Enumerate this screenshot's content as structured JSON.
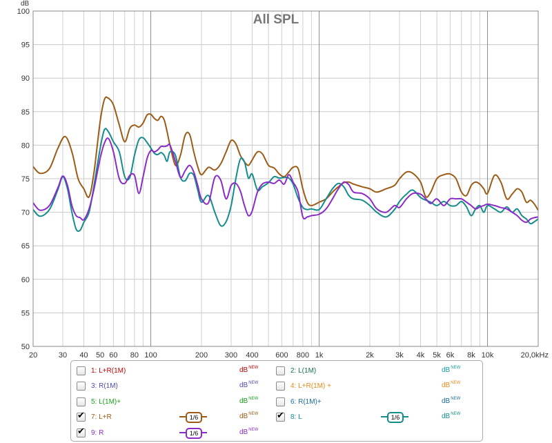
{
  "chart_data": {
    "type": "line",
    "title": "All SPL",
    "ylabel": "dB",
    "ylim": [
      50,
      100
    ],
    "xscale": "log",
    "xlim": [
      20,
      20000
    ],
    "grid": true,
    "y_ticks": [
      "50",
      "55",
      "60",
      "65",
      "70",
      "75",
      "80",
      "85",
      "90",
      "95",
      "100"
    ],
    "x_ticks": [
      {
        "value": 20,
        "label": "20"
      },
      {
        "value": 30,
        "label": "30"
      },
      {
        "value": 40,
        "label": "40"
      },
      {
        "value": 50,
        "label": "50"
      },
      {
        "value": 60,
        "label": "60"
      },
      {
        "value": 80,
        "label": "80"
      },
      {
        "value": 100,
        "label": "100"
      },
      {
        "value": 200,
        "label": "200"
      },
      {
        "value": 300,
        "label": "300"
      },
      {
        "value": 400,
        "label": "400"
      },
      {
        "value": 600,
        "label": "600"
      },
      {
        "value": 800,
        "label": "800"
      },
      {
        "value": 1000,
        "label": "1k"
      },
      {
        "value": 2000,
        "label": "2k"
      },
      {
        "value": 3000,
        "label": "3k"
      },
      {
        "value": 4000,
        "label": "4k"
      },
      {
        "value": 5000,
        "label": "5k"
      },
      {
        "value": 6000,
        "label": "6k"
      },
      {
        "value": 8000,
        "label": "8k"
      },
      {
        "value": 10000,
        "label": "10k"
      },
      {
        "value": 20000,
        "label": "20,0kHz"
      }
    ],
    "series": [
      {
        "name": "7: L+R",
        "color": "#9c5a14",
        "x": [
          20,
          22,
          25,
          28,
          31,
          34,
          37,
          40,
          43,
          46,
          50,
          53,
          56,
          60,
          65,
          70,
          75,
          80,
          85,
          90,
          95,
          100,
          105,
          110,
          115,
          120,
          125,
          130,
          140,
          150,
          160,
          170,
          180,
          190,
          200,
          220,
          240,
          260,
          280,
          300,
          320,
          340,
          360,
          380,
          400,
          430,
          460,
          500,
          540,
          580,
          620,
          660,
          700,
          750,
          800,
          850,
          900,
          1000,
          1100,
          1200,
          1300,
          1400,
          1500,
          1600,
          1800,
          2000,
          2200,
          2500,
          2800,
          3000,
          3300,
          3600,
          4000,
          4300,
          4600,
          5000,
          5500,
          6000,
          6500,
          7000,
          7500,
          8000,
          8500,
          9000,
          9500,
          10000,
          11000,
          12000,
          13000,
          14000,
          15000,
          16000,
          17000,
          18000,
          19000,
          20000
        ],
        "y": [
          76.8,
          75.8,
          76.5,
          79.5,
          81.3,
          79.0,
          75.0,
          73.5,
          72.3,
          76.0,
          83.5,
          86.8,
          87.0,
          86.0,
          83.0,
          80.5,
          82.5,
          83.0,
          82.7,
          83.3,
          84.5,
          84.6,
          84.0,
          83.7,
          84.3,
          83.8,
          82.0,
          80.0,
          77.0,
          78.5,
          81.5,
          81.6,
          79.0,
          76.8,
          75.6,
          76.7,
          76.3,
          77.2,
          79.0,
          80.7,
          80.2,
          78.5,
          77.5,
          77.0,
          77.8,
          79.0,
          78.7,
          77.0,
          76.6,
          75.7,
          75.3,
          76.0,
          76.7,
          76.5,
          73.5,
          71.5,
          71.0,
          71.5,
          72.0,
          73.0,
          73.8,
          74.4,
          74.5,
          74.2,
          73.8,
          73.5,
          73.0,
          73.5,
          74.0,
          75.0,
          76.0,
          75.8,
          74.5,
          72.3,
          73.0,
          75.0,
          75.6,
          75.7,
          75.0,
          73.0,
          72.5,
          74.0,
          74.5,
          74.2,
          73.5,
          72.8,
          75.5,
          74.5,
          72.0,
          72.7,
          73.5,
          73.0,
          71.5,
          71.8,
          71.2,
          70.3
        ]
      },
      {
        "name": "8: L",
        "color": "#148c8c",
        "x": [
          20,
          22,
          25,
          28,
          30,
          32,
          34,
          36,
          38,
          40,
          43,
          46,
          50,
          53,
          56,
          60,
          65,
          70,
          75,
          80,
          85,
          90,
          95,
          100,
          105,
          110,
          115,
          120,
          125,
          130,
          140,
          150,
          160,
          170,
          180,
          190,
          200,
          220,
          240,
          260,
          280,
          300,
          320,
          340,
          360,
          380,
          400,
          430,
          460,
          500,
          540,
          580,
          620,
          660,
          700,
          750,
          800,
          850,
          900,
          1000,
          1100,
          1200,
          1300,
          1400,
          1500,
          1600,
          1800,
          2000,
          2200,
          2500,
          2800,
          3000,
          3300,
          3600,
          4000,
          4300,
          4600,
          5000,
          5500,
          6000,
          6500,
          7000,
          7500,
          8000,
          8500,
          9000,
          9500,
          10000,
          11000,
          12000,
          13000,
          14000,
          15000,
          16000,
          17000,
          18000,
          19000,
          20000
        ],
        "y": [
          70.4,
          69.4,
          70.4,
          73.3,
          75.3,
          73.5,
          70.0,
          67.5,
          67.3,
          68.5,
          70.0,
          74.0,
          79.5,
          82.3,
          82.0,
          80.5,
          79.0,
          75.3,
          75.2,
          78.5,
          80.8,
          81.1,
          80.4,
          79.6,
          78.8,
          78.6,
          78.9,
          78.5,
          77.6,
          79.0,
          78.5,
          75.2,
          74.7,
          75.8,
          75.5,
          73.3,
          71.5,
          72.5,
          70.0,
          68.0,
          68.6,
          71.0,
          75.0,
          77.9,
          77.5,
          75.1,
          75.7,
          73.3,
          73.8,
          74.4,
          75.3,
          75.1,
          75.2,
          75.1,
          74.2,
          72.1,
          70.7,
          70.4,
          70.5,
          70.4,
          72.0,
          73.5,
          74.3,
          73.8,
          72.5,
          72.0,
          71.8,
          71.0,
          70.0,
          69.3,
          70.4,
          71.6,
          72.7,
          73.3,
          72.2,
          71.8,
          71.5,
          71.0,
          71.6,
          71.0,
          71.0,
          71.6,
          70.8,
          69.5,
          70.5,
          71.0,
          70.0,
          71.0,
          70.5,
          70.0,
          70.8,
          70.0,
          70.5,
          69.5,
          69.0,
          68.3,
          68.6,
          69.0
        ]
      },
      {
        "name": "9: R",
        "color": "#8a2bc8",
        "x": [
          20,
          22,
          25,
          28,
          30,
          32,
          34,
          36,
          38,
          40,
          43,
          46,
          50,
          53,
          56,
          60,
          65,
          70,
          75,
          80,
          85,
          90,
          95,
          100,
          105,
          110,
          115,
          120,
          125,
          130,
          140,
          150,
          160,
          170,
          180,
          190,
          200,
          220,
          240,
          260,
          280,
          300,
          320,
          340,
          360,
          380,
          400,
          430,
          460,
          500,
          540,
          580,
          620,
          660,
          700,
          750,
          800,
          850,
          900,
          1000,
          1100,
          1200,
          1300,
          1400,
          1500,
          1600,
          1800,
          2000,
          2200,
          2500,
          2800,
          3000,
          3300,
          3600,
          4000,
          4300,
          4600,
          5000,
          5500,
          6000,
          6500,
          7000,
          7500,
          8000,
          8500,
          9000,
          9500,
          10000,
          11000,
          12000,
          13000,
          14000,
          15000,
          16000,
          17000,
          18000,
          19000,
          20000
        ],
        "y": [
          71.4,
          70.3,
          71.0,
          73.6,
          75.4,
          74.0,
          71.0,
          69.5,
          69.2,
          68.9,
          70.5,
          73.5,
          78.0,
          80.3,
          81.0,
          79.0,
          75.0,
          74.3,
          75.5,
          75.5,
          72.8,
          75.3,
          78.0,
          79.2,
          79.0,
          79.3,
          79.8,
          79.8,
          79.9,
          80.0,
          77.6,
          75.2,
          76.2,
          77.0,
          76.0,
          74.0,
          72.0,
          71.4,
          75.2,
          74.8,
          72.0,
          74.0,
          74.3,
          73.2,
          71.0,
          69.5,
          70.2,
          73.0,
          74.2,
          74.5,
          74.3,
          74.8,
          74.2,
          75.6,
          74.5,
          73.0,
          69.3,
          69.3,
          69.5,
          69.7,
          70.5,
          72.0,
          73.5,
          74.5,
          74.1,
          73.0,
          72.8,
          72.0,
          70.5,
          70.0,
          71.0,
          70.7,
          72.0,
          72.8,
          72.7,
          72.0,
          71.3,
          72.0,
          71.0,
          72.0,
          72.0,
          72.0,
          71.5,
          71.0,
          70.5,
          70.8,
          71.0,
          71.2,
          71.0,
          70.7,
          70.5,
          70.0,
          69.5,
          68.8,
          68.5,
          69.0,
          69.2,
          69.3
        ]
      }
    ]
  },
  "legend": {
    "smoothing_label": "1/6",
    "db_label": "dB",
    "db_superscript": "NEW",
    "items": [
      {
        "label": "1: L+R(1M)",
        "checked": false,
        "color": "#c00000",
        "db_color": "#c00000"
      },
      {
        "label": "2: L(1M)",
        "checked": false,
        "color": "#147050",
        "db_color": "#14a0a0"
      },
      {
        "label": "3: R(1M)",
        "checked": false,
        "color": "#4a4ab4",
        "db_color": "#4a4ab4"
      },
      {
        "label": "4: L+R(1M) +",
        "checked": false,
        "color": "#e88a1a",
        "db_color": "#e88a1a"
      },
      {
        "label": "5: L(1M)+",
        "checked": false,
        "color": "#1aa01a",
        "db_color": "#1aa01a"
      },
      {
        "label": "6: R(1M)+",
        "checked": false,
        "color": "#1a6aa0",
        "db_color": "#1a6aa0"
      },
      {
        "label": "7: L+R",
        "checked": true,
        "color": "#9c5a14",
        "db_color": "#9c5a14",
        "smoothing": true
      },
      {
        "label": "8: L",
        "checked": true,
        "color": "#148c8c",
        "db_color": "#148c8c",
        "smoothing": true
      },
      {
        "label": "9: R",
        "checked": true,
        "color": "#8a2bc8",
        "db_color": "#8a2bc8",
        "smoothing": true
      }
    ]
  }
}
